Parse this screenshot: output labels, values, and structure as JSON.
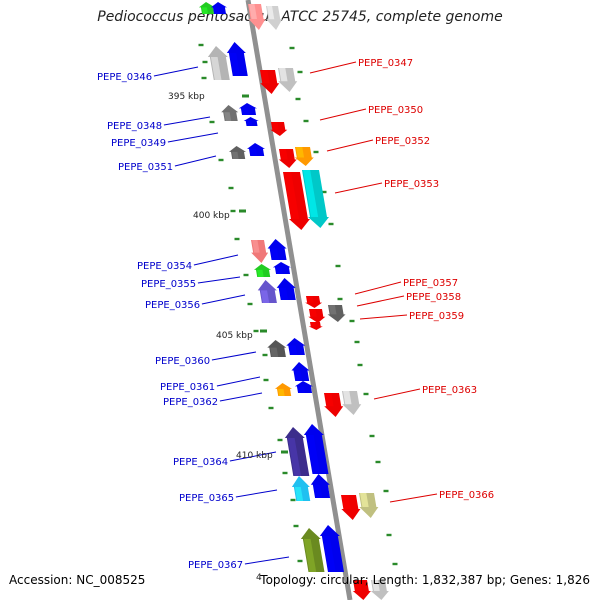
{
  "title": "Pediococcus pentosaceus ATCC 25745, complete genome",
  "footer": {
    "accession_label": "Accession:",
    "accession": "NC_008525",
    "topology_label": "Topology:",
    "topology": "circular",
    "length_label": "Length:",
    "length": "1,832,387 bp",
    "genes_label": "Genes:",
    "genes": "1,826"
  },
  "colors": {
    "backbone": "#909090",
    "tick": "#2a8a2a",
    "minus_label": "#0000cc",
    "plus_label": "#dd0000"
  },
  "scale_labels": [
    "395 kbp",
    "400 kbp",
    "405 kbp",
    "410 kbp",
    "4"
  ],
  "genes_minus": [
    {
      "name": "PEPE_0346"
    },
    {
      "name": "PEPE_0348"
    },
    {
      "name": "PEPE_0349"
    },
    {
      "name": "PEPE_0351"
    },
    {
      "name": "PEPE_0354"
    },
    {
      "name": "PEPE_0355"
    },
    {
      "name": "PEPE_0356"
    },
    {
      "name": "PEPE_0360"
    },
    {
      "name": "PEPE_0361"
    },
    {
      "name": "PEPE_0362"
    },
    {
      "name": "PEPE_0364"
    },
    {
      "name": "PEPE_0365"
    },
    {
      "name": "PEPE_0367"
    }
  ],
  "genes_plus": [
    {
      "name": "PEPE_0347"
    },
    {
      "name": "PEPE_0350"
    },
    {
      "name": "PEPE_0352"
    },
    {
      "name": "PEPE_0353"
    },
    {
      "name": "PEPE_0357"
    },
    {
      "name": "PEPE_0358"
    },
    {
      "name": "PEPE_0359"
    },
    {
      "name": "PEPE_0363"
    },
    {
      "name": "PEPE_0366"
    }
  ]
}
